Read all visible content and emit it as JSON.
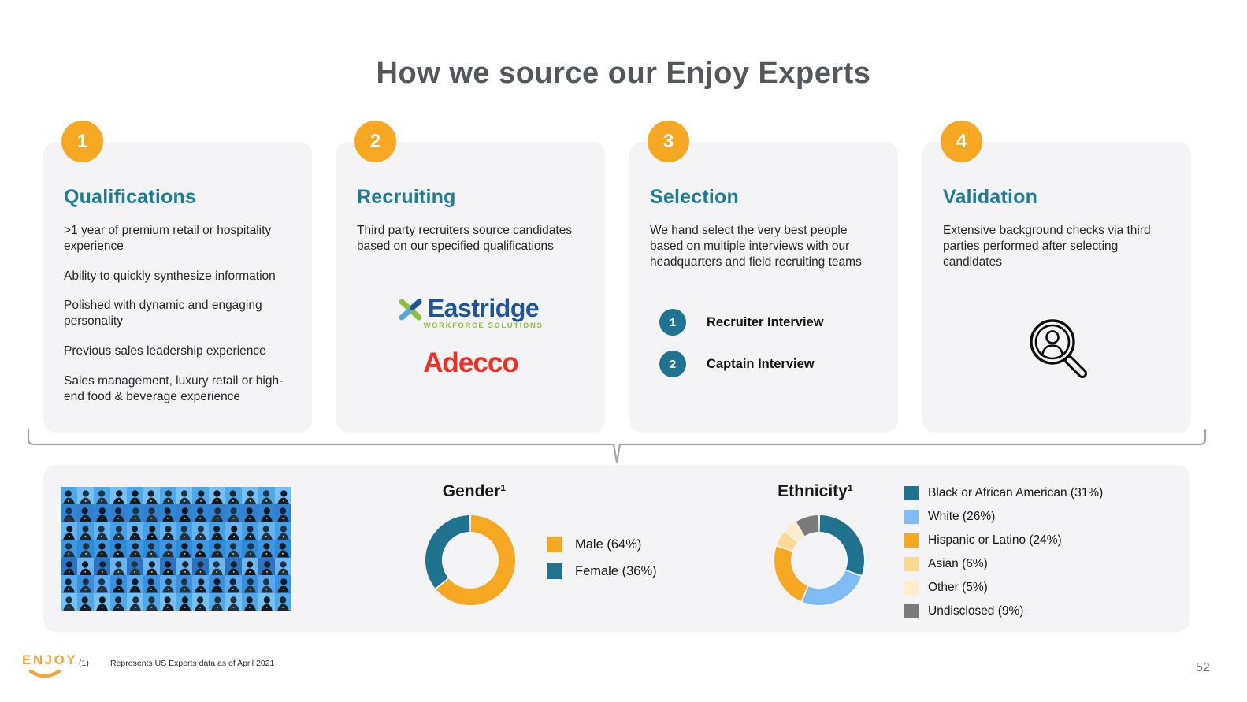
{
  "slide": {
    "title": "How we source our Enjoy Experts",
    "page_number": "52"
  },
  "steps": [
    {
      "number": "1",
      "title": "Qualifications",
      "paragraphs": [
        ">1 year of premium retail or hospitality experience",
        "Ability to quickly synthesize information",
        "Polished with dynamic and engaging personality",
        "Previous sales leadership experience",
        "Sales management, luxury retail or high-end food & beverage experience"
      ]
    },
    {
      "number": "2",
      "title": "Recruiting",
      "paragraphs": [
        "Third party recruiters source candidates based on our specified qualifications"
      ],
      "logos": [
        {
          "name": "Eastridge",
          "tagline": "WORKFORCE SOLUTIONS",
          "text_color": "#1C5699",
          "tagline_color": "#8FBF3D"
        },
        {
          "name": "Adecco",
          "text_color": "#EF2E24"
        }
      ]
    },
    {
      "number": "3",
      "title": "Selection",
      "paragraphs": [
        "We hand select the very best people based on multiple interviews with our headquarters and field recruiting teams"
      ],
      "interview_steps": [
        {
          "number": "1",
          "label": "Recruiter Interview"
        },
        {
          "number": "2",
          "label": "Captain Interview"
        }
      ]
    },
    {
      "number": "4",
      "title": "Validation",
      "paragraphs": [
        "Extensive background checks via third parties performed after selecting candidates"
      ],
      "icon": "magnifier-person-icon"
    }
  ],
  "chart_data": [
    {
      "type": "pie",
      "donut": true,
      "title": "Gender¹",
      "legend_position": "right",
      "series": [
        {
          "label": "Male",
          "value": 64,
          "color": "#F7A823"
        },
        {
          "label": "Female",
          "value": 36,
          "color": "#20738F"
        }
      ]
    },
    {
      "type": "pie",
      "donut": true,
      "title": "Ethnicity¹",
      "legend_position": "right",
      "series": [
        {
          "label": "Black or African American",
          "value": 31,
          "color": "#20738F"
        },
        {
          "label": "White",
          "value": 26,
          "color": "#7FBCF4"
        },
        {
          "label": "Hispanic or Latino",
          "value": 24,
          "color": "#F7A823"
        },
        {
          "label": "Asian",
          "value": 6,
          "color": "#FBD98E"
        },
        {
          "label": "Other",
          "value": 5,
          "color": "#FDEDC9"
        },
        {
          "label": "Undisclosed",
          "value": 9,
          "color": "#7B7B7B"
        }
      ]
    }
  ],
  "mosaic": {
    "rows": 7,
    "cols": 14,
    "blues": [
      "#4FA8E8",
      "#2F86D6",
      "#63B4F0",
      "#3E97E2",
      "#2B74C4",
      "#58A9ED",
      "#77C0F4",
      "#3580CE",
      "#45A0E6",
      "#2D8BD9",
      "#6BB6F1",
      "#3B8FDC"
    ],
    "shirts": [
      "#1A2430",
      "#141C28",
      "#20303E",
      "#0E1620",
      "#233240"
    ],
    "badge_color": "#F7D13E"
  },
  "footer": {
    "logo_text": "ENJOY",
    "footnote_marker": "(1)",
    "footnote": "Represents US Experts data as of April 2021"
  },
  "colors": {
    "accent_orange": "#F7A823",
    "heading_teal": "#1E7C96",
    "step_circle_teal": "#1F7390",
    "card_background": "#F4F4F6",
    "title_gray": "#54575D",
    "bracket_gray": "#A6A6A6"
  },
  "icons": {
    "validation": "magnifier-person",
    "eastridge_mark": "x-cross",
    "enjoy_logo": "smile-arc"
  }
}
